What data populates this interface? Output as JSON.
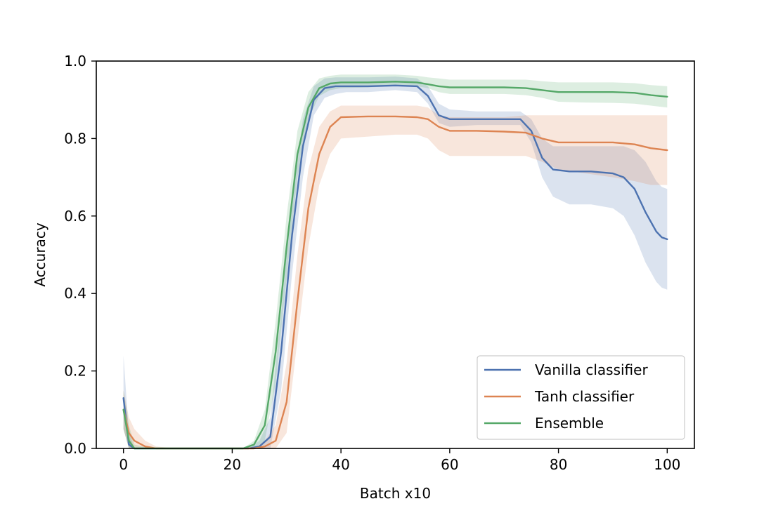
{
  "chart_data": {
    "type": "line",
    "title": "",
    "xlabel": "Batch x10",
    "ylabel": "Accuracy",
    "xlim": [
      -5,
      105
    ],
    "ylim": [
      0.0,
      1.0
    ],
    "xticks": [
      0,
      20,
      40,
      60,
      80,
      100
    ],
    "xtick_labels": [
      "0",
      "20",
      "40",
      "60",
      "80",
      "100"
    ],
    "yticks": [
      0.0,
      0.2,
      0.4,
      0.6,
      0.8,
      1.0
    ],
    "ytick_labels": [
      "0.0",
      "0.2",
      "0.4",
      "0.6",
      "0.8",
      "1.0"
    ],
    "grid": false,
    "legend_position": "lower-right",
    "series": [
      {
        "name": "Vanilla classifier",
        "color": "#4c72b0",
        "x": [
          0,
          1,
          2,
          5,
          10,
          20,
          23,
          25,
          27,
          29,
          31,
          33,
          35,
          37,
          39,
          41,
          45,
          50,
          54,
          56,
          58,
          60,
          65,
          70,
          73,
          75,
          77,
          79,
          82,
          86,
          90,
          92,
          94,
          96,
          98,
          99,
          100
        ],
        "y": [
          0.13,
          0.01,
          0.0,
          0.0,
          0.0,
          0.0,
          0.0,
          0.005,
          0.03,
          0.25,
          0.55,
          0.78,
          0.9,
          0.93,
          0.935,
          0.935,
          0.935,
          0.937,
          0.935,
          0.91,
          0.86,
          0.85,
          0.85,
          0.85,
          0.85,
          0.82,
          0.75,
          0.72,
          0.715,
          0.715,
          0.71,
          0.7,
          0.67,
          0.61,
          0.56,
          0.545,
          0.54
        ],
        "band_lower": [
          0.05,
          0.0,
          0.0,
          0.0,
          0.0,
          0.0,
          0.0,
          0.0,
          0.0,
          0.15,
          0.45,
          0.7,
          0.86,
          0.905,
          0.915,
          0.92,
          0.92,
          0.925,
          0.92,
          0.89,
          0.84,
          0.83,
          0.835,
          0.835,
          0.835,
          0.79,
          0.7,
          0.65,
          0.63,
          0.63,
          0.62,
          0.6,
          0.55,
          0.48,
          0.43,
          0.415,
          0.41
        ],
        "band_upper": [
          0.24,
          0.04,
          0.0,
          0.0,
          0.0,
          0.0,
          0.0,
          0.02,
          0.08,
          0.35,
          0.65,
          0.85,
          0.935,
          0.955,
          0.958,
          0.958,
          0.958,
          0.96,
          0.955,
          0.935,
          0.89,
          0.875,
          0.87,
          0.87,
          0.87,
          0.85,
          0.8,
          0.78,
          0.78,
          0.78,
          0.78,
          0.78,
          0.77,
          0.74,
          0.69,
          0.675,
          0.67
        ]
      },
      {
        "name": "Tanh classifier",
        "color": "#dd8452",
        "x": [
          0,
          1,
          2,
          4,
          6,
          10,
          20,
          24,
          26,
          28,
          30,
          32,
          34,
          36,
          38,
          40,
          45,
          50,
          54,
          56,
          58,
          60,
          65,
          70,
          74,
          77,
          80,
          85,
          90,
          94,
          97,
          100
        ],
        "y": [
          0.1,
          0.04,
          0.02,
          0.005,
          0.0,
          0.0,
          0.0,
          0.0,
          0.005,
          0.02,
          0.12,
          0.38,
          0.62,
          0.76,
          0.83,
          0.855,
          0.857,
          0.857,
          0.855,
          0.85,
          0.83,
          0.82,
          0.82,
          0.818,
          0.815,
          0.8,
          0.79,
          0.79,
          0.79,
          0.785,
          0.775,
          0.77
        ],
        "band_lower": [
          0.05,
          0.0,
          0.0,
          0.0,
          0.0,
          0.0,
          0.0,
          0.0,
          0.0,
          0.0,
          0.04,
          0.28,
          0.52,
          0.68,
          0.76,
          0.8,
          0.805,
          0.81,
          0.81,
          0.8,
          0.77,
          0.755,
          0.755,
          0.755,
          0.755,
          0.74,
          0.72,
          0.71,
          0.7,
          0.69,
          0.68,
          0.68
        ],
        "band_upper": [
          0.15,
          0.08,
          0.05,
          0.02,
          0.005,
          0.0,
          0.0,
          0.0,
          0.02,
          0.06,
          0.22,
          0.5,
          0.72,
          0.83,
          0.87,
          0.885,
          0.885,
          0.885,
          0.885,
          0.88,
          0.86,
          0.855,
          0.855,
          0.855,
          0.86,
          0.86,
          0.86,
          0.86,
          0.86,
          0.86,
          0.86,
          0.86
        ]
      },
      {
        "name": "Ensemble",
        "color": "#55a868",
        "x": [
          0,
          1,
          2,
          5,
          10,
          20,
          22,
          24,
          26,
          28,
          30,
          32,
          34,
          36,
          38,
          40,
          45,
          50,
          54,
          56,
          58,
          60,
          65,
          70,
          74,
          77,
          80,
          85,
          90,
          94,
          97,
          100
        ],
        "y": [
          0.1,
          0.02,
          0.0,
          0.0,
          0.0,
          0.0,
          0.0,
          0.01,
          0.06,
          0.25,
          0.52,
          0.76,
          0.88,
          0.93,
          0.942,
          0.945,
          0.945,
          0.947,
          0.945,
          0.94,
          0.935,
          0.932,
          0.932,
          0.932,
          0.93,
          0.925,
          0.92,
          0.92,
          0.92,
          0.918,
          0.912,
          0.908
        ],
        "band_lower": [
          0.05,
          0.0,
          0.0,
          0.0,
          0.0,
          0.0,
          0.0,
          0.0,
          0.02,
          0.17,
          0.44,
          0.7,
          0.85,
          0.91,
          0.925,
          0.93,
          0.932,
          0.935,
          0.935,
          0.93,
          0.92,
          0.915,
          0.915,
          0.915,
          0.912,
          0.905,
          0.895,
          0.893,
          0.892,
          0.89,
          0.885,
          0.88
        ],
        "band_upper": [
          0.15,
          0.06,
          0.01,
          0.0,
          0.0,
          0.0,
          0.0,
          0.02,
          0.1,
          0.33,
          0.6,
          0.82,
          0.92,
          0.955,
          0.962,
          0.965,
          0.965,
          0.965,
          0.962,
          0.958,
          0.955,
          0.952,
          0.952,
          0.952,
          0.952,
          0.948,
          0.945,
          0.945,
          0.945,
          0.943,
          0.938,
          0.935
        ]
      }
    ]
  }
}
